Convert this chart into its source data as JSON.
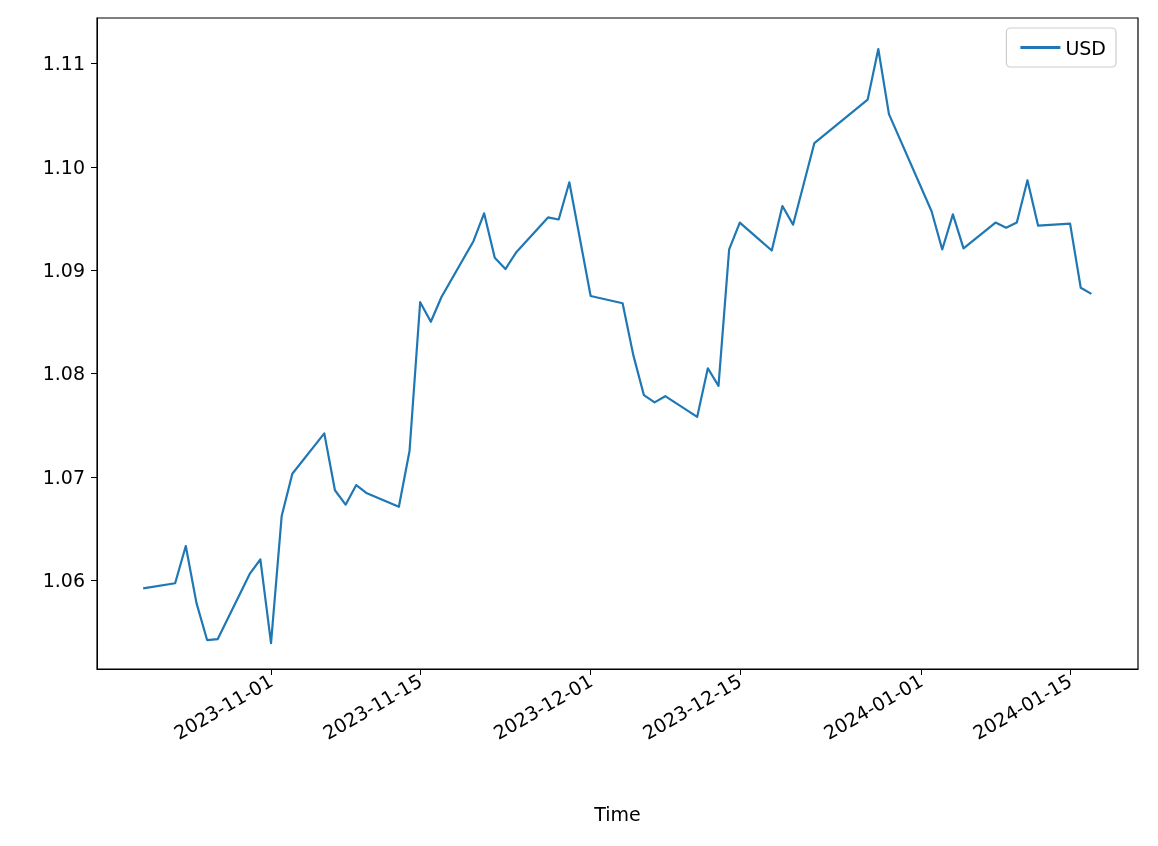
{
  "chart_data": {
    "type": "line",
    "xlabel": "Time",
    "legend": "top right",
    "grid": false,
    "line_style": "solid",
    "marker": "none",
    "x": [
      "2023-10-20",
      "2023-10-23",
      "2023-10-24",
      "2023-10-25",
      "2023-10-26",
      "2023-10-27",
      "2023-10-30",
      "2023-10-31",
      "2023-11-01",
      "2023-11-02",
      "2023-11-03",
      "2023-11-06",
      "2023-11-07",
      "2023-11-08",
      "2023-11-09",
      "2023-11-10",
      "2023-11-13",
      "2023-11-14",
      "2023-11-15",
      "2023-11-16",
      "2023-11-17",
      "2023-11-20",
      "2023-11-21",
      "2023-11-22",
      "2023-11-23",
      "2023-11-24",
      "2023-11-27",
      "2023-11-28",
      "2023-11-29",
      "2023-12-01",
      "2023-12-04",
      "2023-12-05",
      "2023-12-06",
      "2023-12-07",
      "2023-12-08",
      "2023-12-11",
      "2023-12-12",
      "2023-12-13",
      "2023-12-14",
      "2023-12-15",
      "2023-12-18",
      "2023-12-19",
      "2023-12-20",
      "2023-12-22",
      "2023-12-27",
      "2023-12-28",
      "2023-12-29",
      "2024-01-02",
      "2024-01-03",
      "2024-01-04",
      "2024-01-05",
      "2024-01-08",
      "2024-01-09",
      "2024-01-10",
      "2024-01-11",
      "2024-01-12",
      "2024-01-15",
      "2024-01-16",
      "2024-01-17"
    ],
    "series": [
      {
        "name": "USD",
        "color": "#1f77b4",
        "values": [
          1.0592,
          1.0597,
          1.0633,
          1.0578,
          1.0542,
          1.0543,
          1.0606,
          1.062,
          1.0539,
          1.0662,
          1.0703,
          1.0742,
          1.0687,
          1.0673,
          1.0692,
          1.0684,
          1.0671,
          1.0725,
          1.0869,
          1.085,
          1.0874,
          1.0928,
          1.0955,
          1.0912,
          1.0901,
          1.0917,
          1.0951,
          1.0949,
          1.0985,
          1.0875,
          1.0868,
          1.0818,
          1.0779,
          1.0772,
          1.0778,
          1.0758,
          1.0805,
          1.0788,
          1.092,
          1.0946,
          1.0919,
          1.0962,
          1.0944,
          1.1023,
          1.1065,
          1.1114,
          1.1051,
          1.0957,
          1.092,
          1.0954,
          1.0921,
          1.0946,
          1.0941,
          1.0946,
          1.0987,
          1.0943,
          1.0945,
          1.0883,
          1.0877
        ]
      }
    ],
    "xlim": [
      "2023-10-15T16:00",
      "2024-01-21T09:00"
    ],
    "xticks": [
      "2023-11-01",
      "2023-11-15",
      "2023-12-01",
      "2023-12-15",
      "2024-01-01",
      "2024-01-15"
    ],
    "ylim": [
      1.0514,
      1.1144
    ],
    "yticks": [
      1.06,
      1.07,
      1.08,
      1.09,
      {
        "value": 1.1,
        "label": "1.10"
      },
      1.11
    ]
  }
}
